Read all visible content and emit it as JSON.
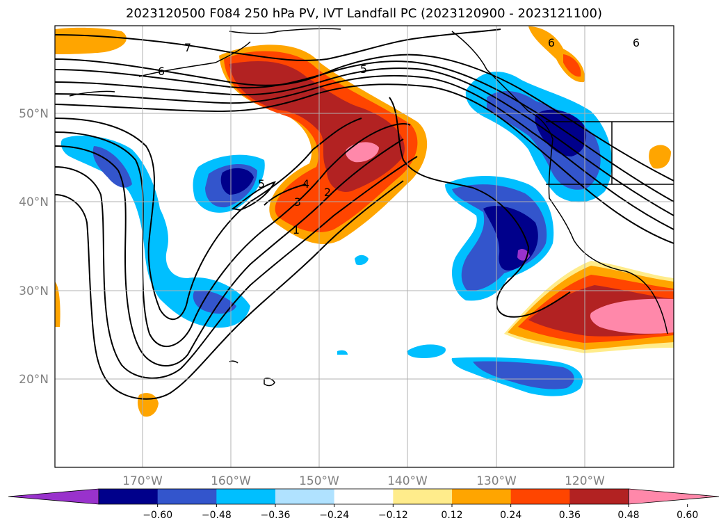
{
  "title": "2023120500 F084 250 hPa PV, IVT Landfall PC (2023120900 - 2023121100)",
  "lat_labels": [
    "50°N",
    "40°N",
    "30°N",
    "20°N"
  ],
  "lon_labels": [
    "170°W",
    "160°W",
    "150°W",
    "140°W",
    "130°W",
    "120°W"
  ],
  "colorbar": {
    "ticks": [
      "−0.60",
      "−0.48",
      "−0.36",
      "−0.24",
      "−0.12",
      "0.12",
      "0.24",
      "0.36",
      "0.48",
      "0.60"
    ],
    "colors": [
      "#9932cc",
      "#00008b",
      "#3355cc",
      "#00bfff",
      "#b0e2ff",
      "#ffffff",
      "#ffec8b",
      "#ffa500",
      "#ff4500",
      "#b22222",
      "#ff88aa"
    ]
  },
  "contour_labels": [
    "7",
    "6",
    "5",
    "6",
    "6",
    "5",
    "4",
    "3",
    "2",
    "1"
  ]
}
